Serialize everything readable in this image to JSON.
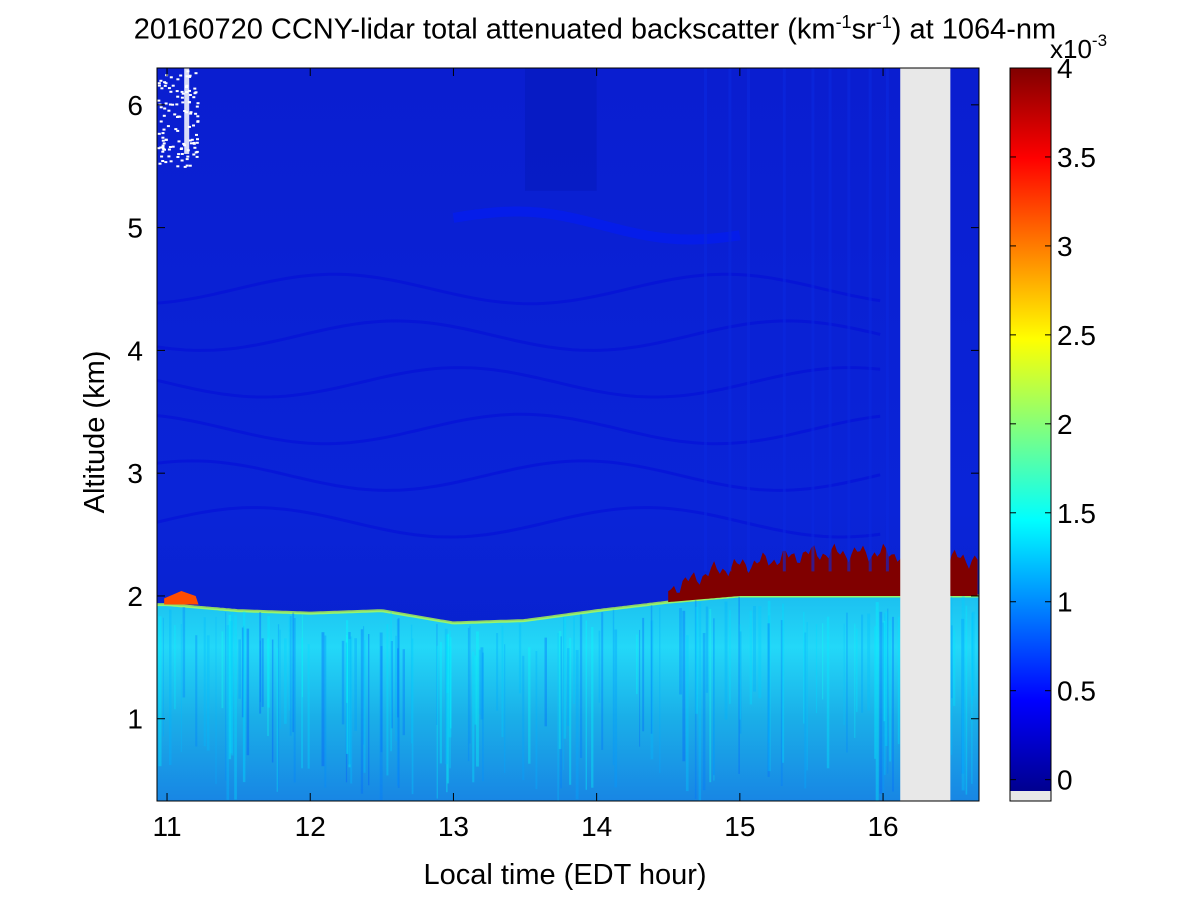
{
  "title": {
    "part1": "20160720 CCNY-lidar total attenuated backscatter (km",
    "sup1": "-1",
    "part2": "sr",
    "sup2": "-1",
    "part3": ") at 1064-nm"
  },
  "colorbar": {
    "multiplier_base": "x10",
    "multiplier_exp": "-3",
    "ticks": [
      "0",
      "0.5",
      "1",
      "1.5",
      "2",
      "2.5",
      "3",
      "3.5",
      "4"
    ],
    "range": [
      -0.12,
      4
    ],
    "colormap": "jet",
    "nan_color": "#e8e8e8"
  },
  "chart_data": {
    "type": "heatmap",
    "title": "20160720 CCNY-lidar total attenuated backscatter (km-1sr-1) at 1064-nm",
    "xlabel": "Local time (EDT hour)",
    "ylabel": "Altitude (km)",
    "xlim": [
      10.93,
      16.67
    ],
    "ylim": [
      0.33,
      6.3
    ],
    "xticks": [
      "11",
      "12",
      "13",
      "14",
      "15",
      "16"
    ],
    "yticks": [
      "1",
      "2",
      "3",
      "4",
      "5",
      "6"
    ],
    "zlim": [
      0,
      4
    ],
    "z_scale": "x10^-3",
    "no_data_interval": [
      16.12,
      16.47
    ],
    "boundary_layer_top_km": [
      {
        "t": 11.0,
        "h": 1.93
      },
      {
        "t": 11.5,
        "h": 1.88
      },
      {
        "t": 12.0,
        "h": 1.86
      },
      {
        "t": 12.5,
        "h": 1.88
      },
      {
        "t": 13.0,
        "h": 1.78
      },
      {
        "t": 13.5,
        "h": 1.8
      },
      {
        "t": 14.0,
        "h": 1.88
      },
      {
        "t": 14.5,
        "h": 1.95
      },
      {
        "t": 15.0,
        "h": 2.0
      },
      {
        "t": 15.5,
        "h": 2.0
      },
      {
        "t": 16.0,
        "h": 2.0
      },
      {
        "t": 16.6,
        "h": 2.0
      }
    ],
    "aerosol_layer_top_km": [
      {
        "t": 14.5,
        "h": 2.05
      },
      {
        "t": 14.8,
        "h": 2.2
      },
      {
        "t": 15.0,
        "h": 2.25
      },
      {
        "t": 15.5,
        "h": 2.35
      },
      {
        "t": 16.0,
        "h": 2.35
      },
      {
        "t": 16.6,
        "h": 2.3
      }
    ],
    "layer_value": 4,
    "boundary_layer_value": 1.2,
    "free_troposphere_value": 0.1,
    "cirrus_layer": {
      "t_start": 13.0,
      "t_end": 15.0,
      "h": 5.05,
      "value": 0.6
    }
  }
}
